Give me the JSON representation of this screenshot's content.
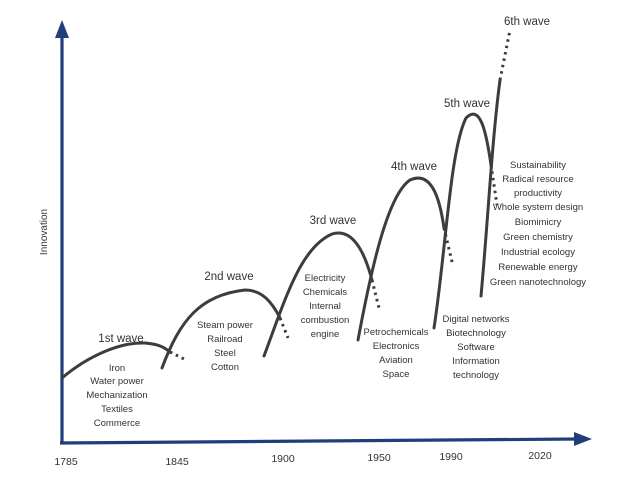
{
  "diagram": {
    "y_axis_label": "Innovation",
    "colors": {
      "axis": "#1f3e7a",
      "curve": "#3d3d3d",
      "text": "#333333"
    },
    "x_ticks": [
      "1785",
      "1845",
      "1900",
      "1950",
      "1990",
      "2020"
    ],
    "waves": [
      {
        "title": "1st wave",
        "items": [
          "Iron",
          "Water power",
          "Mechanization",
          "Textiles",
          "Commerce"
        ]
      },
      {
        "title": "2nd wave",
        "items": [
          "Steam power",
          "Railroad",
          "Steel",
          "Cotton"
        ]
      },
      {
        "title": "3rd wave",
        "items": [
          "Electricity",
          "Chemicals",
          "Internal",
          "combustion",
          "engine"
        ]
      },
      {
        "title": "4th wave",
        "items": [
          "Petrochemicals",
          "Electronics",
          "Aviation",
          "Space"
        ]
      },
      {
        "title": "5th wave",
        "items": [
          "Digital networks",
          "Biotechnology",
          "Software",
          "Information",
          "technology"
        ]
      },
      {
        "title": "6th wave",
        "items": [
          "Sustainability",
          "Radical resource",
          "productivity",
          "Whole system design",
          "Biomimicry",
          "Green chemistry",
          "Industrial ecology",
          "Renewable energy",
          "Green nanotechnology"
        ]
      }
    ]
  }
}
